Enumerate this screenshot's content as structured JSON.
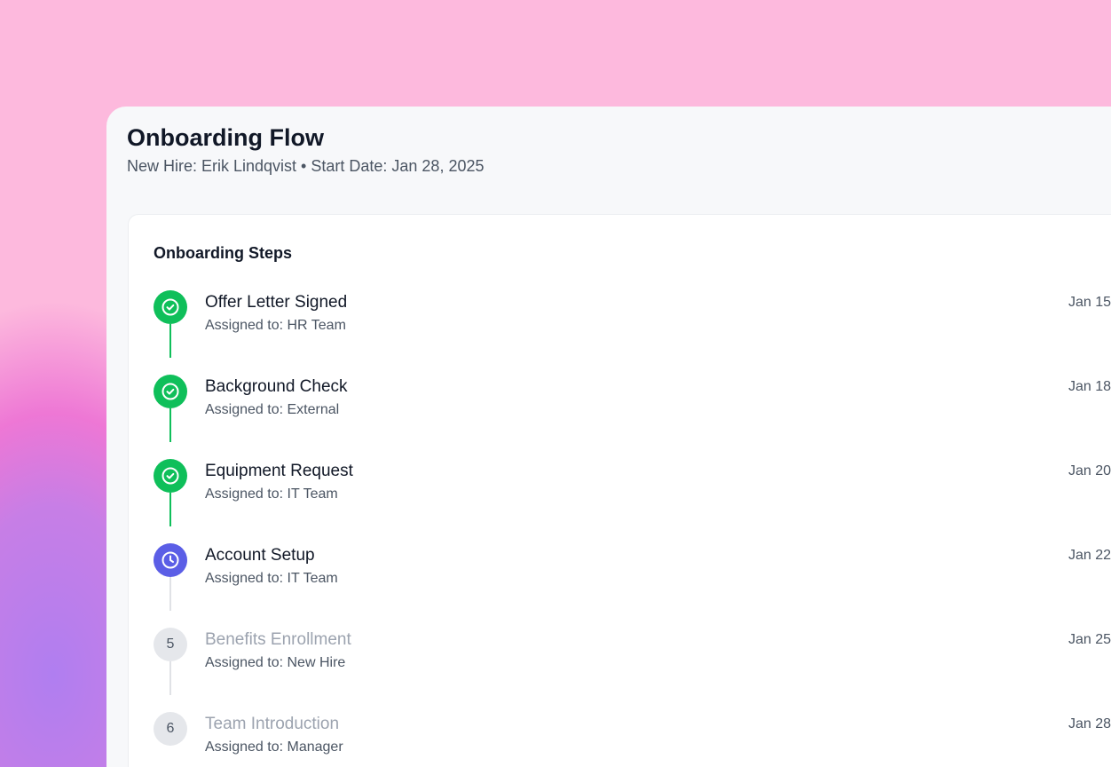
{
  "header": {
    "title": "Onboarding Flow",
    "subtitle": "New Hire: Erik Lindqvist • Start Date: Jan 28, 2025"
  },
  "colors": {
    "done": "#0fbf5a",
    "current": "#5b5ee6",
    "pending": "#e5e7eb",
    "pending_line": "#e0e2e6"
  },
  "steps_title": "Onboarding Steps",
  "steps": [
    {
      "name": "Offer Letter Signed",
      "assigned": "Assigned to: HR Team",
      "date": "Jan 15",
      "status": "completed",
      "icon": "check-circle-icon"
    },
    {
      "name": "Background Check",
      "assigned": "Assigned to: External",
      "date": "Jan 18",
      "status": "completed",
      "icon": "check-circle-icon"
    },
    {
      "name": "Equipment Request",
      "assigned": "Assigned to: IT Team",
      "date": "Jan 20",
      "status": "completed",
      "icon": "check-circle-icon"
    },
    {
      "name": "Account Setup",
      "assigned": "Assigned to: IT Team",
      "date": "Jan 22",
      "status": "in-progress",
      "icon": "clock-icon"
    },
    {
      "name": "Benefits Enrollment",
      "assigned": "Assigned to: New Hire",
      "date": "Jan 25",
      "status": "pending",
      "number": "5"
    },
    {
      "name": "Team Introduction",
      "assigned": "Assigned to: Manager",
      "date": "Jan 28",
      "status": "pending",
      "number": "6"
    }
  ]
}
